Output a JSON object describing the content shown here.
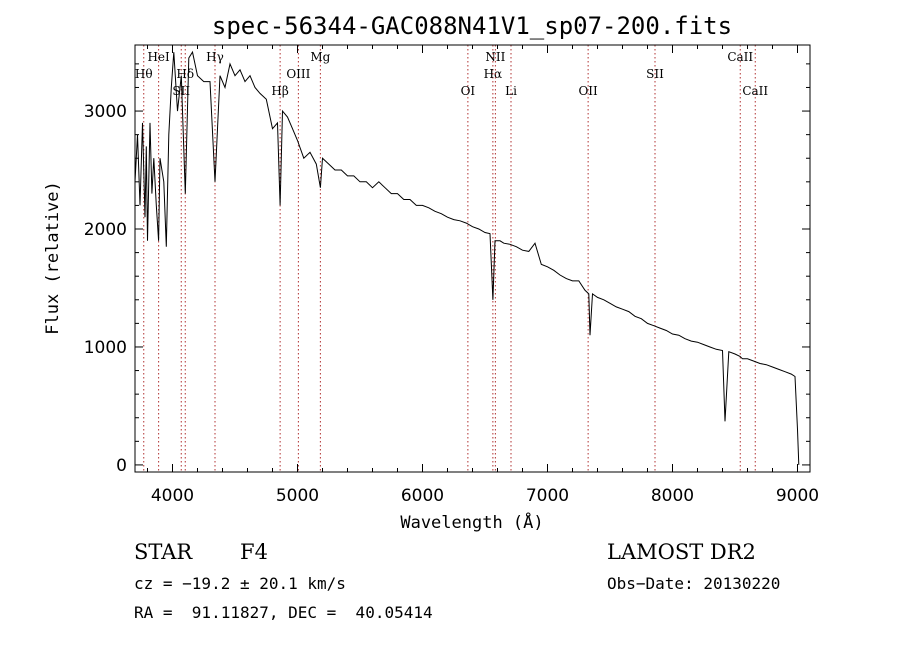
{
  "chart_data": {
    "type": "line",
    "title": "spec-56344-GAC088N41V1_sp07-200.fits",
    "xlabel": "Wavelength (Å)",
    "ylabel": "Flux (relative)",
    "xlim": [
      3700,
      9100
    ],
    "ylim": [
      -60,
      3560
    ],
    "xticks": [
      "4000",
      "5000",
      "6000",
      "7000",
      "8000",
      "9000"
    ],
    "yticks": [
      "0",
      "1000",
      "2000",
      "3000"
    ],
    "grid": false,
    "series": [
      {
        "x": [
          3700,
          3720,
          3740,
          3760,
          3780,
          3790,
          3800,
          3820,
          3835,
          3850,
          3870,
          3889,
          3900,
          3930,
          3950,
          3970,
          3990,
          4010,
          4040,
          4070,
          4102,
          4130,
          4160,
          4200,
          4250,
          4300,
          4340,
          4380,
          4420,
          4460,
          4500,
          4540,
          4580,
          4620,
          4660,
          4700,
          4750,
          4800,
          4840,
          4861,
          4880,
          4920,
          4960,
          5000,
          5050,
          5100,
          5150,
          5183,
          5200,
          5250,
          5300,
          5350,
          5400,
          5450,
          5500,
          5550,
          5600,
          5650,
          5700,
          5750,
          5800,
          5850,
          5900,
          5950,
          6000,
          6050,
          6100,
          6150,
          6200,
          6250,
          6300,
          6350,
          6400,
          6450,
          6500,
          6540,
          6563,
          6580,
          6620,
          6650,
          6700,
          6750,
          6800,
          6850,
          6900,
          6950,
          7000,
          7050,
          7100,
          7150,
          7200,
          7250,
          7300,
          7330,
          7340,
          7360,
          7400,
          7450,
          7500,
          7550,
          7600,
          7650,
          7700,
          7750,
          7800,
          7850,
          7900,
          7950,
          8000,
          8050,
          8100,
          8150,
          8200,
          8250,
          8300,
          8350,
          8400,
          8420,
          8450,
          8500,
          8540,
          8560,
          8600,
          8650,
          8700,
          8750,
          8800,
          8850,
          8900,
          8950,
          8980,
          9000,
          9010
        ],
        "y": [
          2400,
          2800,
          2200,
          2900,
          2100,
          2700,
          1900,
          2900,
          2300,
          2600,
          2200,
          1900,
          2600,
          2400,
          1850,
          2800,
          3200,
          3500,
          3000,
          3300,
          2300,
          3450,
          3500,
          3300,
          3250,
          3250,
          2400,
          3300,
          3200,
          3400,
          3300,
          3350,
          3250,
          3300,
          3200,
          3150,
          3100,
          2850,
          2900,
          2200,
          3000,
          2950,
          2850,
          2750,
          2600,
          2650,
          2550,
          2350,
          2600,
          2550,
          2500,
          2500,
          2450,
          2450,
          2400,
          2400,
          2350,
          2400,
          2350,
          2300,
          2300,
          2250,
          2250,
          2200,
          2200,
          2180,
          2150,
          2130,
          2100,
          2080,
          2070,
          2050,
          2020,
          2000,
          1970,
          1960,
          1400,
          1900,
          1900,
          1880,
          1870,
          1850,
          1820,
          1810,
          1880,
          1700,
          1680,
          1650,
          1610,
          1580,
          1560,
          1560,
          1480,
          1450,
          1100,
          1450,
          1420,
          1400,
          1370,
          1340,
          1320,
          1300,
          1260,
          1240,
          1200,
          1180,
          1160,
          1140,
          1110,
          1100,
          1070,
          1050,
          1040,
          1020,
          1000,
          980,
          970,
          370,
          960,
          940,
          920,
          900,
          900,
          880,
          860,
          850,
          830,
          810,
          790,
          770,
          750,
          300,
          0
        ]
      }
    ]
  },
  "line_markers": [
    {
      "w": 3770,
      "top": "Hθ"
    },
    {
      "w": 3889,
      "top": "HeI"
    },
    {
      "w": 4070,
      "top": "SII"
    },
    {
      "w": 4102,
      "top": "Hδ"
    },
    {
      "w": 4340,
      "top": "Hγ"
    },
    {
      "w": 4861,
      "top": "Hβ"
    },
    {
      "w": 5007,
      "top": "OIII"
    },
    {
      "w": 5183,
      "top": "Mg"
    },
    {
      "w": 6363,
      "top": "OI"
    },
    {
      "w": 6563,
      "top": "Hα"
    },
    {
      "w": 6583,
      "top": "NII"
    },
    {
      "w": 6708,
      "top": "Li"
    },
    {
      "w": 7325,
      "top": "OII"
    },
    {
      "w": 7860,
      "top": "SII"
    },
    {
      "w": 8542,
      "top": "CaII"
    },
    {
      "w": 8662,
      "top": "CaII"
    }
  ],
  "info": {
    "object_class": "STAR",
    "subclass": "F4",
    "survey": "LAMOST DR2",
    "cz": "cz = −19.2 ± 20.1 km/s",
    "obs_date": "Obs−Date: 20130220",
    "coords": "RA =  91.11827, DEC =  40.05414"
  },
  "colors": {
    "spectrum": "#000000",
    "marker": "#b03030",
    "frame": "#000000"
  }
}
